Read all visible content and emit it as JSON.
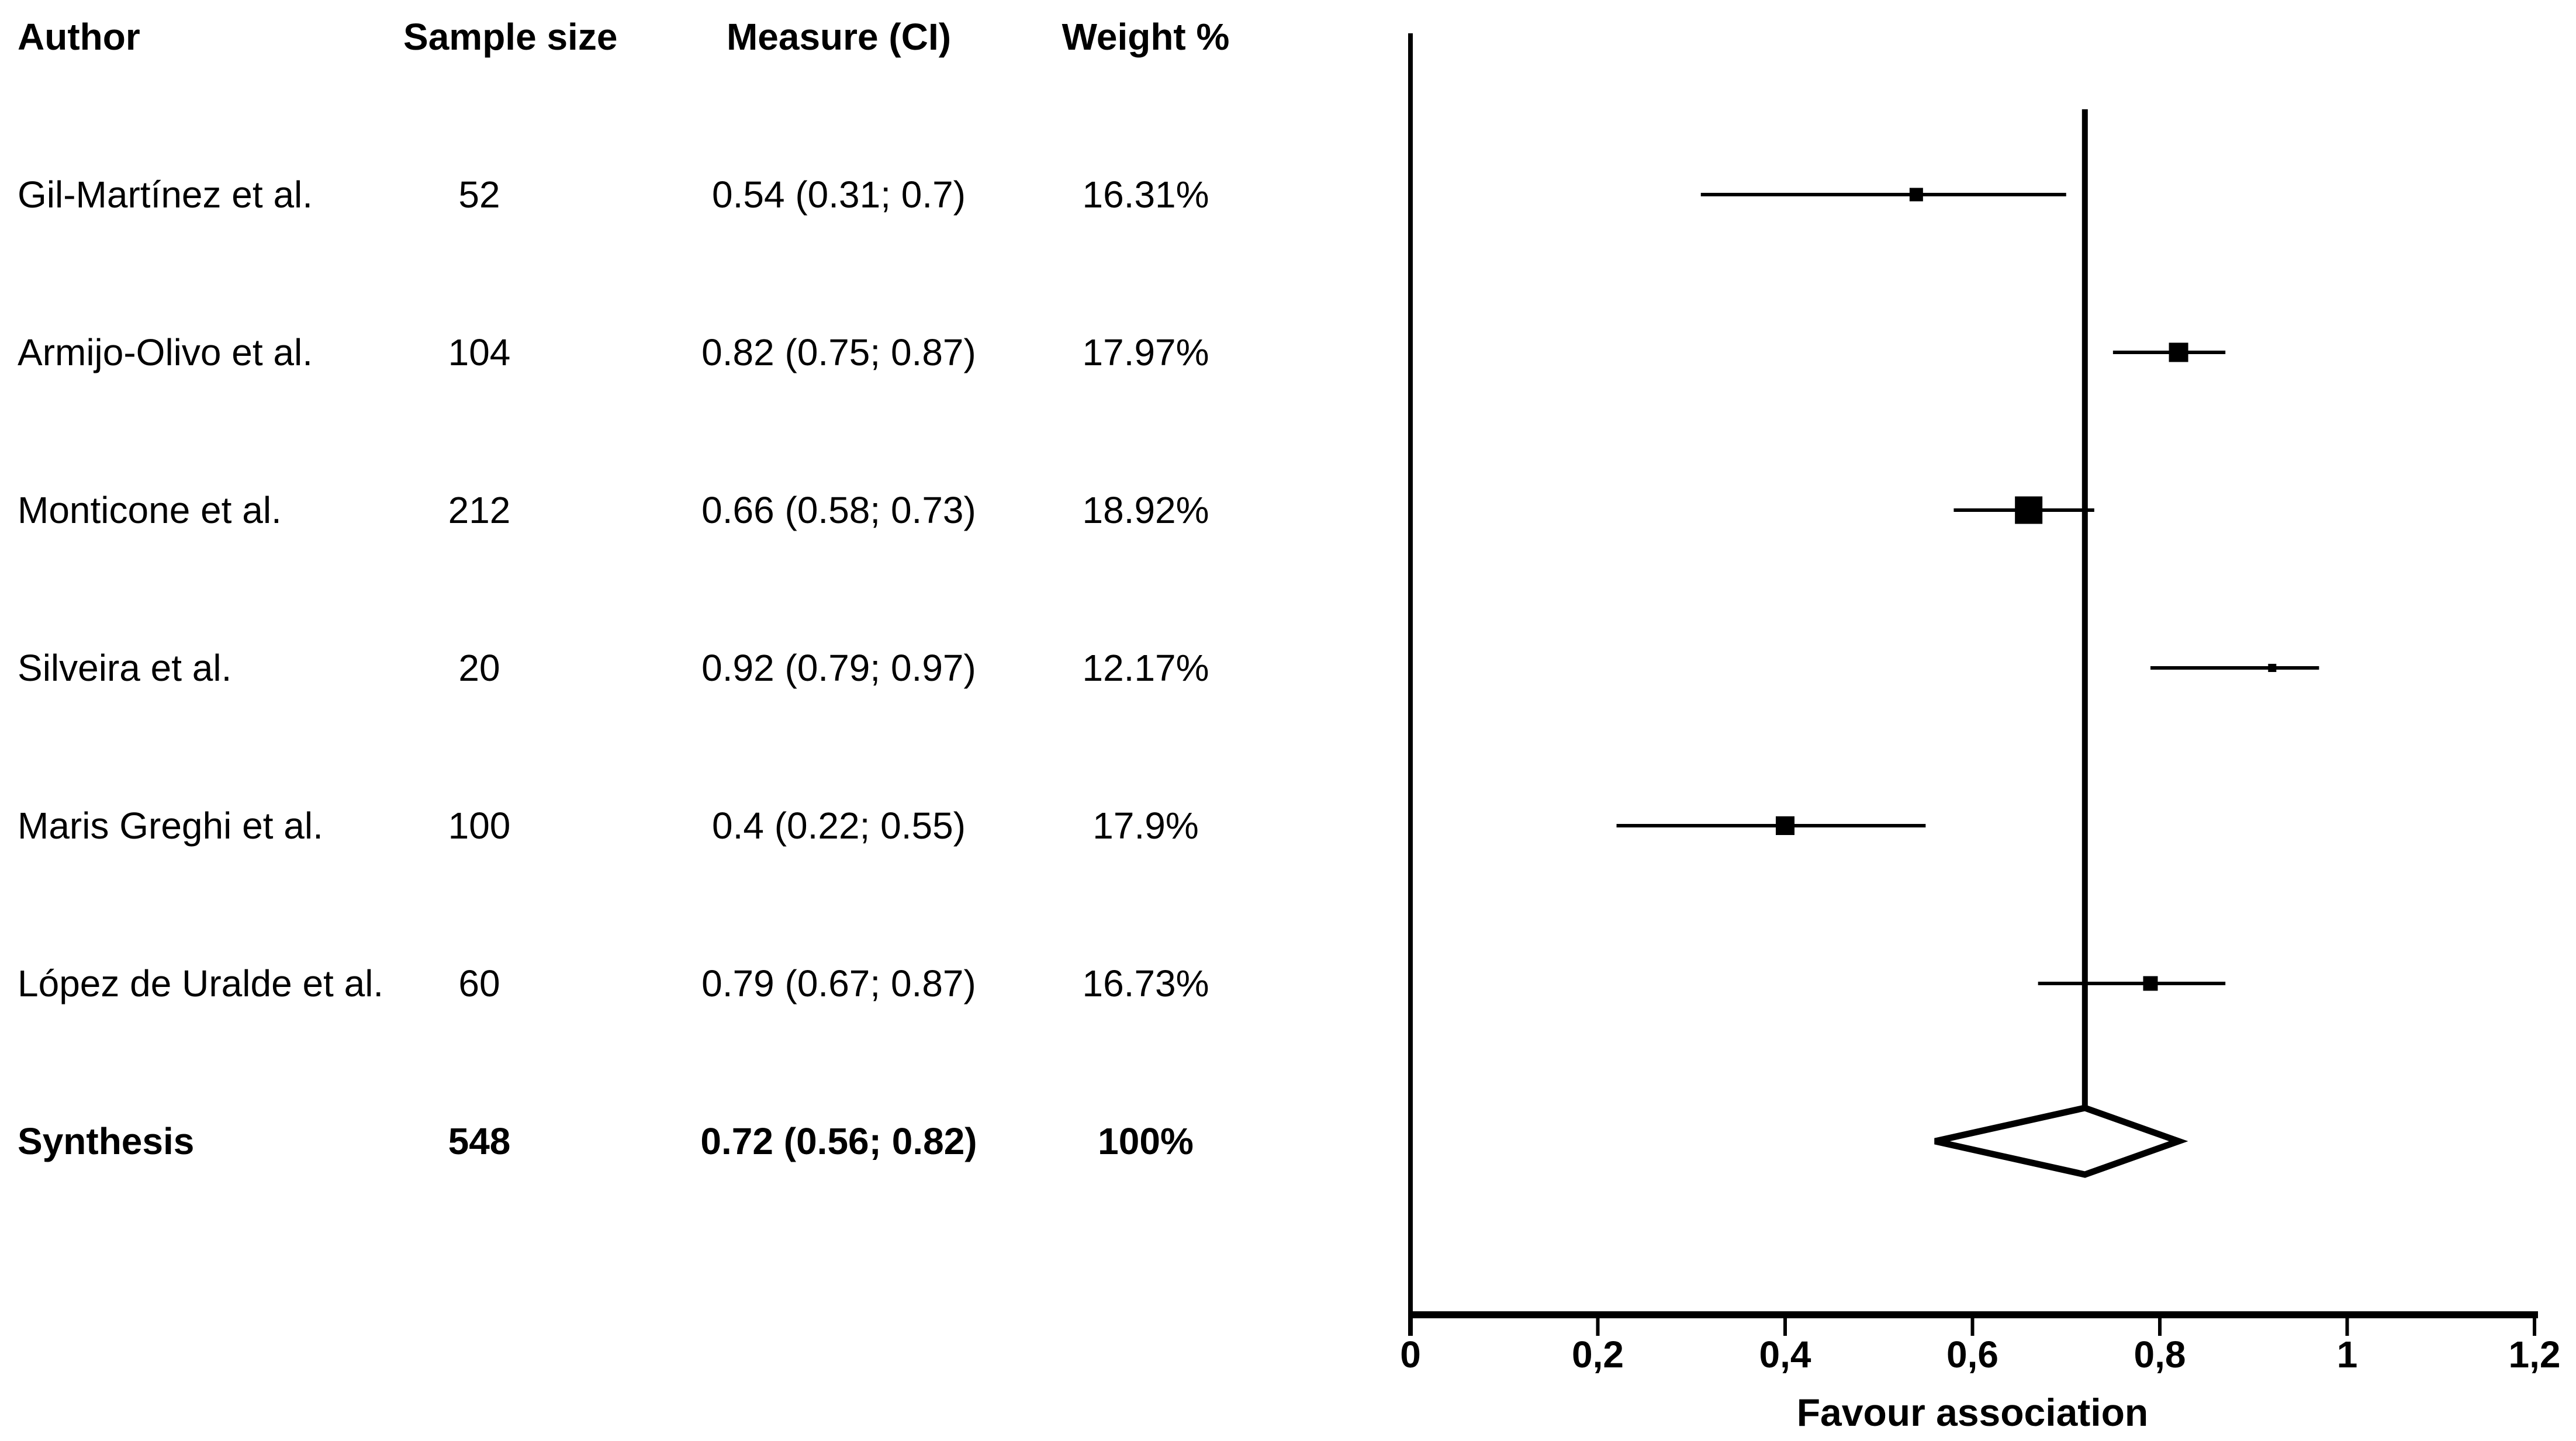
{
  "colors": {
    "ink": "#000000",
    "background": "#ffffff"
  },
  "table": {
    "headers": {
      "author": "Author",
      "sample": "Sample size",
      "measure": "Measure (CI)",
      "weight": "Weight %"
    },
    "rows": [
      {
        "author": "Gil-Martínez et al.",
        "sample": "52",
        "measure": "0.54 (0.31; 0.7)",
        "weight": "16.31%"
      },
      {
        "author": "Armijo-Olivo et al.",
        "sample": "104",
        "measure": "0.82 (0.75; 0.87)",
        "weight": "17.97%"
      },
      {
        "author": "Monticone et al.",
        "sample": "212",
        "measure": "0.66 (0.58; 0.73)",
        "weight": "18.92%"
      },
      {
        "author": "Silveira et al.",
        "sample": "20",
        "measure": "0.92 (0.79; 0.97)",
        "weight": "12.17%"
      },
      {
        "author": "Maris Greghi et al.",
        "sample": "100",
        "measure": "0.4 (0.22; 0.55)",
        "weight": "17.9%"
      },
      {
        "author": "López de Uralde et al.",
        "sample": "60",
        "measure": "0.79 (0.67; 0.87)",
        "weight": "16.73%"
      }
    ],
    "synthesis": {
      "author": "Synthesis",
      "sample": "548",
      "measure": "0.72 (0.56; 0.82)",
      "weight": "100%"
    }
  },
  "chart_data": {
    "type": "scatter",
    "subtype": "forest-plot",
    "xlabel": "Favour association",
    "xlim": [
      0,
      1.2
    ],
    "grid": false,
    "xticks": {
      "values": [
        0,
        0.2,
        0.4,
        0.6,
        0.8,
        1,
        1.2
      ],
      "labels": [
        "0",
        "0,2",
        "0,4",
        "0,6",
        "0,8",
        "1",
        "1,2"
      ]
    },
    "reference_line_x": 0.72,
    "studies": [
      {
        "label": "Gil-Martínez et al.",
        "n": 52,
        "estimate": 0.54,
        "ci_low": 0.31,
        "ci_high": 0.7,
        "weight_pct": 16.31
      },
      {
        "label": "Armijo-Olivo et al.",
        "n": 104,
        "estimate": 0.82,
        "ci_low": 0.75,
        "ci_high": 0.87,
        "weight_pct": 17.97
      },
      {
        "label": "Monticone et al.",
        "n": 212,
        "estimate": 0.66,
        "ci_low": 0.58,
        "ci_high": 0.73,
        "weight_pct": 18.92
      },
      {
        "label": "Silveira et al.",
        "n": 20,
        "estimate": 0.92,
        "ci_low": 0.79,
        "ci_high": 0.97,
        "weight_pct": 12.17
      },
      {
        "label": "Maris Greghi et al.",
        "n": 100,
        "estimate": 0.4,
        "ci_low": 0.22,
        "ci_high": 0.55,
        "weight_pct": 17.9
      },
      {
        "label": "López de Uralde et al.",
        "n": 60,
        "estimate": 0.79,
        "ci_low": 0.67,
        "ci_high": 0.87,
        "weight_pct": 16.73
      }
    ],
    "synthesis": {
      "label": "Synthesis",
      "n": 548,
      "estimate": 0.72,
      "ci_low": 0.56,
      "ci_high": 0.82,
      "weight_pct": 100
    }
  }
}
